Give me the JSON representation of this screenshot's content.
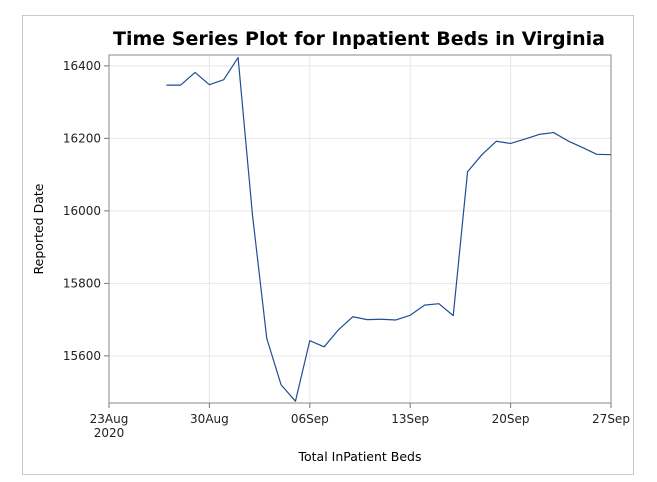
{
  "chart_data": {
    "type": "line",
    "title": "Time Series Plot for Inpatient Beds in Virginia",
    "xlabel": "Total InPatient Beds",
    "ylabel": "Reported Date",
    "x_type": "date",
    "xlim": [
      "2020-08-23",
      "2020-09-27"
    ],
    "ylim": [
      15470,
      16430
    ],
    "x_ticks": [
      {
        "date": "2020-08-23",
        "label": "23Aug",
        "sublabel": "2020"
      },
      {
        "date": "2020-08-30",
        "label": "30Aug",
        "sublabel": ""
      },
      {
        "date": "2020-09-06",
        "label": "06Sep",
        "sublabel": ""
      },
      {
        "date": "2020-09-13",
        "label": "13Sep",
        "sublabel": ""
      },
      {
        "date": "2020-09-20",
        "label": "20Sep",
        "sublabel": ""
      },
      {
        "date": "2020-09-27",
        "label": "27Sep",
        "sublabel": ""
      }
    ],
    "y_ticks": [
      15600,
      15800,
      16000,
      16200,
      16400
    ],
    "grid": true,
    "line_color": "#1f4e96",
    "grid_color": "#e6e6e6",
    "series": [
      {
        "x": [
          "2020-08-27",
          "2020-08-28",
          "2020-08-29",
          "2020-08-30",
          "2020-08-31",
          "2020-09-01",
          "2020-09-02",
          "2020-09-03",
          "2020-09-04",
          "2020-09-05",
          "2020-09-06",
          "2020-09-07",
          "2020-09-08",
          "2020-09-09",
          "2020-09-10",
          "2020-09-11",
          "2020-09-12",
          "2020-09-13",
          "2020-09-14",
          "2020-09-15",
          "2020-09-16",
          "2020-09-17",
          "2020-09-18",
          "2020-09-19",
          "2020-09-20",
          "2020-09-21",
          "2020-09-22",
          "2020-09-23",
          "2020-09-24",
          "2020-09-25",
          "2020-09-26",
          "2020-09-27"
        ],
        "values": [
          16347,
          16347,
          16382,
          16348,
          16362,
          16423,
          15990,
          15648,
          15520,
          15475,
          15642,
          15625,
          15672,
          15708,
          15700,
          15701,
          15699,
          15712,
          15740,
          15744,
          15711,
          16108,
          16155,
          16192,
          16186,
          16198,
          16211,
          16216,
          16193,
          16175,
          16156,
          16155
        ]
      }
    ]
  }
}
